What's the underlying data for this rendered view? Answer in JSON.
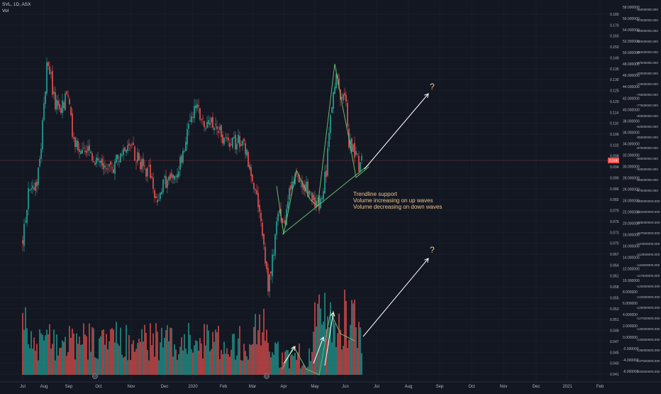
{
  "legend": {
    "symbol": "SVL, 1D, ASX",
    "volume": "Vol"
  },
  "colors": {
    "bg": "#131722",
    "grid": "#1e222d",
    "up": "#26a69a",
    "down": "#ef5350",
    "annotation_line": "#66bb6a",
    "annotation_arrow": "#ffffff",
    "annotation_text": "#f0c48a",
    "price_line": "#ef5350"
  },
  "chart_data": {
    "type": "candlestick",
    "x_labels": [
      "Jul",
      "Aug",
      "Sep",
      "Oct",
      "Nov",
      "Dec",
      "2020",
      "Feb",
      "Mar",
      "Apr",
      "May",
      "Jun",
      "Jul",
      "Aug",
      "Sep",
      "Oct",
      "Nov",
      "Dec",
      "2021",
      "Feb"
    ],
    "y_ticks_price": [
      "0.180",
      "0.170",
      "0.160",
      "0.150",
      "0.140",
      "0.135",
      "0.130",
      "0.125",
      "0.120",
      "0.114",
      "0.110",
      "0.106",
      "0.102",
      "0.098",
      "0.094",
      "0.090",
      "0.086",
      "0.082",
      "0.079",
      "0.076",
      "0.073",
      "0.070",
      "0.067",
      "0.064",
      "0.061",
      "0.058",
      "0.055",
      "0.053",
      "0.051",
      "0.049",
      "0.047",
      "0.045",
      "0.043",
      "0.041"
    ],
    "y_ticks_volume": [
      "58.000000",
      "56.000000",
      "54.000000",
      "52.000000",
      "50.000000",
      "48.000000",
      "46.000000",
      "44.000000",
      "42.000000",
      "40.000000",
      "38.000000",
      "36.000000",
      "34.000000",
      "32.000000",
      "30.000000",
      "28.000000",
      "26.000000",
      "24.000000",
      "22.000000",
      "20.000000",
      "18.000000",
      "16.000000",
      "14.000000",
      "12.000000",
      "10.000000",
      "8.000000",
      "6.000000",
      "4.000000",
      "2.000000",
      "0.000000",
      "-2.000000",
      "-4.000000",
      "-6.000000"
    ],
    "y_ticks_right": [
      "-55000000.000",
      "-57500000.000",
      "-60000000.000",
      "-62500000.000",
      "-65000000.000",
      "-67500000.000",
      "-70000000.000",
      "-72500000.000",
      "-75000000.000",
      "-77500000.000",
      "-80000000.000",
      "-82500000.000",
      "-85000000.000",
      "-87500000.000",
      "-90000000.000",
      "-92500000.000",
      "-95000000.000",
      "-97500000.000",
      "-100000000.000",
      "-102500000.000",
      "-105000000.000",
      "-107500000.000",
      "-110000000.000",
      "-112500000.000",
      "-115000000.000",
      "-117500000.000",
      "-120000000.000",
      "-122500000.000",
      "-125000000.000",
      "-127500000.000",
      "-130000000.000",
      "-132500000.000",
      "-135000000.000",
      "-137500000.000",
      "-140000000.000"
    ],
    "last_price": "0.096",
    "price_range": [
      0.04,
      0.185
    ],
    "annotations": {
      "text_lines": [
        "Trendline support",
        "Volume increasing on up waves",
        "Volume decreasing on down waves"
      ],
      "question_marks": [
        "?",
        "?"
      ]
    }
  }
}
